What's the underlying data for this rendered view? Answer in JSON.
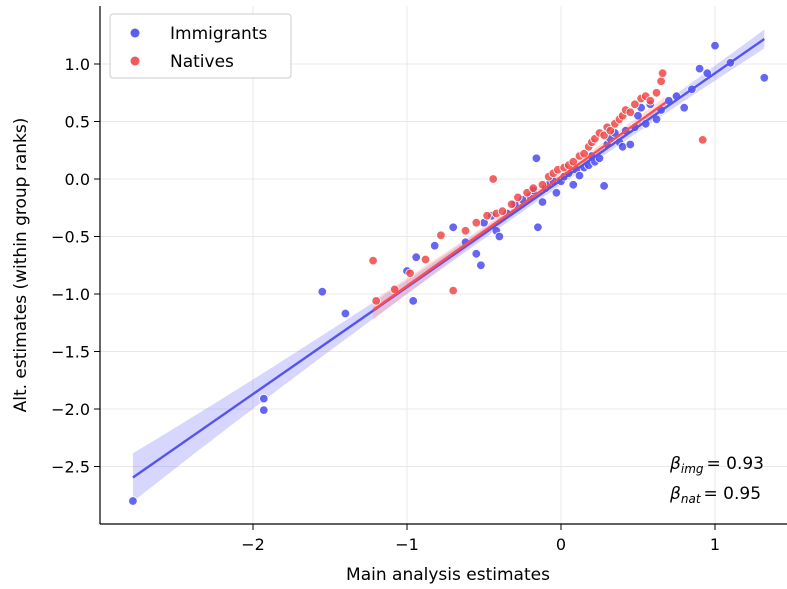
{
  "chart_data": {
    "type": "scatter",
    "title": "",
    "xlabel": "Main analysis estimates",
    "ylabel": "Alt. estimates (within group ranks)",
    "xlim": [
      -3.0,
      1.45
    ],
    "ylim": [
      -3.0,
      1.5
    ],
    "xticks": [
      -2,
      -1,
      0,
      1
    ],
    "yticks": [
      -2.5,
      -2.0,
      -1.5,
      -1.0,
      -0.5,
      0.0,
      0.5,
      1.0
    ],
    "xtick_labels": [
      "−2",
      "−1",
      "0",
      "1"
    ],
    "ytick_labels": [
      "−2.5",
      "−2.0",
      "−1.5",
      "−1.0",
      "−0.5",
      "0.0",
      "0.5",
      "1.0"
    ],
    "grid": true,
    "legend_position": "top-left",
    "series": [
      {
        "name": "Immigrants",
        "color": "#3a3af0",
        "fit": {
          "slope": 0.93,
          "intercept": -0.01,
          "x_range": [
            -2.78,
            1.32
          ]
        },
        "points": [
          [
            -2.78,
            -2.8
          ],
          [
            -1.93,
            -2.01
          ],
          [
            -1.93,
            -1.91
          ],
          [
            -1.55,
            -0.98
          ],
          [
            -1.4,
            -1.17
          ],
          [
            -1.0,
            -0.8
          ],
          [
            -0.96,
            -1.06
          ],
          [
            -0.94,
            -0.68
          ],
          [
            -0.82,
            -0.58
          ],
          [
            -0.7,
            -0.42
          ],
          [
            -0.62,
            -0.55
          ],
          [
            -0.55,
            -0.65
          ],
          [
            -0.52,
            -0.75
          ],
          [
            -0.5,
            -0.38
          ],
          [
            -0.45,
            -0.32
          ],
          [
            -0.42,
            -0.45
          ],
          [
            -0.4,
            -0.5
          ],
          [
            -0.35,
            -0.3
          ],
          [
            -0.3,
            -0.22
          ],
          [
            -0.25,
            -0.18
          ],
          [
            -0.2,
            -0.15
          ],
          [
            -0.18,
            -0.1
          ],
          [
            -0.16,
            0.18
          ],
          [
            -0.15,
            -0.42
          ],
          [
            -0.12,
            -0.2
          ],
          [
            -0.1,
            -0.08
          ],
          [
            -0.08,
            -0.05
          ],
          [
            -0.05,
            -0.02
          ],
          [
            -0.03,
            -0.12
          ],
          [
            0.0,
            -0.02
          ],
          [
            0.02,
            0.02
          ],
          [
            0.05,
            0.05
          ],
          [
            0.08,
            -0.05
          ],
          [
            0.1,
            0.08
          ],
          [
            0.12,
            0.03
          ],
          [
            0.15,
            0.1
          ],
          [
            0.18,
            0.12
          ],
          [
            0.2,
            0.2
          ],
          [
            0.22,
            0.15
          ],
          [
            0.25,
            0.18
          ],
          [
            0.28,
            -0.06
          ],
          [
            0.3,
            0.3
          ],
          [
            0.32,
            0.35
          ],
          [
            0.35,
            0.4
          ],
          [
            0.38,
            0.32
          ],
          [
            0.4,
            0.28
          ],
          [
            0.42,
            0.42
          ],
          [
            0.45,
            0.3
          ],
          [
            0.48,
            0.45
          ],
          [
            0.5,
            0.55
          ],
          [
            0.52,
            0.62
          ],
          [
            0.55,
            0.48
          ],
          [
            0.58,
            0.65
          ],
          [
            0.62,
            0.52
          ],
          [
            0.65,
            0.6
          ],
          [
            0.7,
            0.68
          ],
          [
            0.75,
            0.72
          ],
          [
            0.8,
            0.62
          ],
          [
            0.85,
            0.78
          ],
          [
            0.9,
            0.96
          ],
          [
            0.95,
            0.92
          ],
          [
            1.0,
            1.16
          ],
          [
            1.1,
            1.01
          ],
          [
            1.32,
            0.88
          ]
        ]
      },
      {
        "name": "Natives",
        "color": "#f02828",
        "fit": {
          "slope": 0.95,
          "intercept": 0.02,
          "x_range": [
            -1.22,
            0.68
          ]
        },
        "points": [
          [
            -1.22,
            -0.71
          ],
          [
            -1.2,
            -1.06
          ],
          [
            -1.08,
            -0.96
          ],
          [
            -0.98,
            -0.82
          ],
          [
            -0.88,
            -0.7
          ],
          [
            -0.78,
            -0.49
          ],
          [
            -0.7,
            -0.97
          ],
          [
            -0.62,
            -0.45
          ],
          [
            -0.55,
            -0.38
          ],
          [
            -0.48,
            -0.32
          ],
          [
            -0.44,
            0.0
          ],
          [
            -0.42,
            -0.3
          ],
          [
            -0.38,
            -0.28
          ],
          [
            -0.32,
            -0.22
          ],
          [
            -0.28,
            -0.16
          ],
          [
            -0.22,
            -0.12
          ],
          [
            -0.18,
            -0.08
          ],
          [
            -0.12,
            -0.05
          ],
          [
            -0.08,
            0.02
          ],
          [
            -0.05,
            0.05
          ],
          [
            -0.02,
            0.08
          ],
          [
            0.02,
            0.1
          ],
          [
            0.05,
            0.12
          ],
          [
            0.08,
            0.15
          ],
          [
            0.12,
            0.2
          ],
          [
            0.15,
            0.22
          ],
          [
            0.18,
            0.28
          ],
          [
            0.2,
            0.32
          ],
          [
            0.22,
            0.35
          ],
          [
            0.25,
            0.4
          ],
          [
            0.28,
            0.38
          ],
          [
            0.3,
            0.45
          ],
          [
            0.32,
            0.42
          ],
          [
            0.35,
            0.48
          ],
          [
            0.38,
            0.52
          ],
          [
            0.4,
            0.55
          ],
          [
            0.42,
            0.6
          ],
          [
            0.45,
            0.58
          ],
          [
            0.48,
            0.65
          ],
          [
            0.52,
            0.7
          ],
          [
            0.55,
            0.72
          ],
          [
            0.58,
            0.68
          ],
          [
            0.62,
            0.75
          ],
          [
            0.65,
            0.85
          ],
          [
            0.66,
            0.92
          ],
          [
            0.92,
            0.34
          ]
        ]
      }
    ],
    "annotations": [
      {
        "symbol": "β",
        "subscript": "img",
        "text": "= 0.93"
      },
      {
        "symbol": "β",
        "subscript": "nat",
        "text": "= 0.95"
      }
    ]
  }
}
